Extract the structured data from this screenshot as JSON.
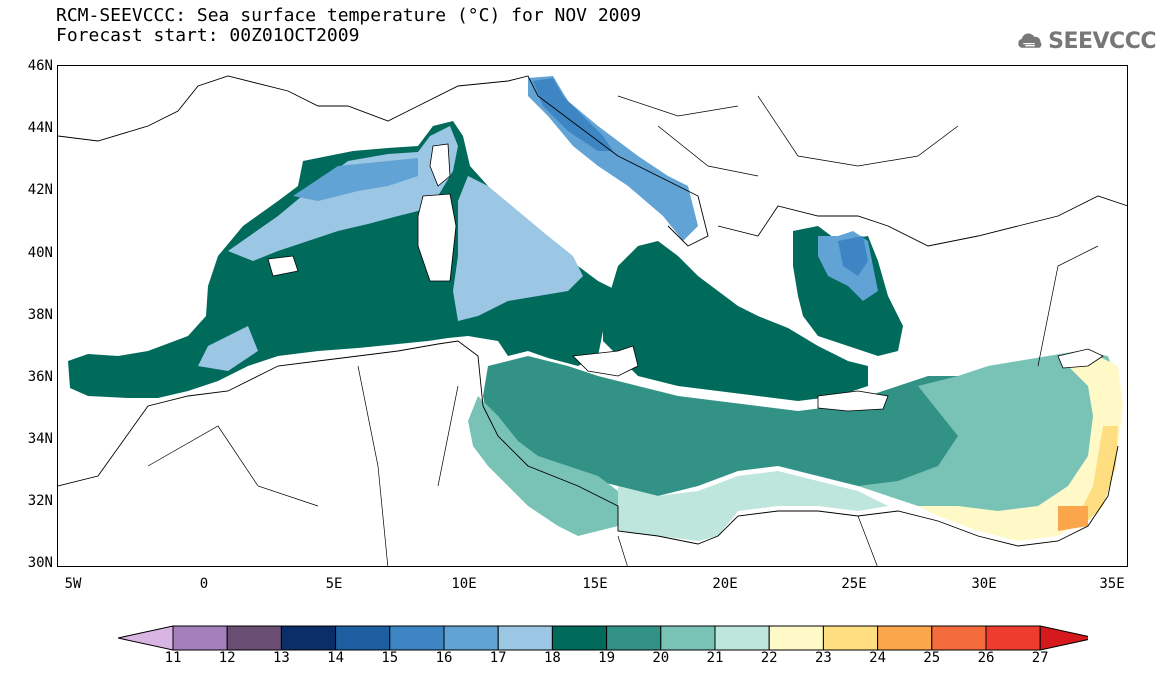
{
  "title": {
    "line1": "RCM-SEEVCCC: Sea surface temperature (°C) for NOV 2009",
    "line2": "Forecast start: 00Z01OCT2009"
  },
  "logo": {
    "text": "SEEVCCC",
    "icon": "cloud-logo-icon",
    "color": "#777777"
  },
  "map": {
    "lat_labels": [
      "46N",
      "44N",
      "42N",
      "40N",
      "38N",
      "36N",
      "34N",
      "32N",
      "30N"
    ],
    "lon_labels": [
      "5W",
      "0",
      "5E",
      "10E",
      "15E",
      "20E",
      "25E",
      "30E",
      "35E"
    ],
    "lon_range": [
      -5.5,
      36
    ],
    "lat_range": [
      30,
      46
    ]
  },
  "colorbar": {
    "ticks": [
      "11",
      "12",
      "13",
      "14",
      "15",
      "16",
      "17",
      "18",
      "19",
      "20",
      "21",
      "22",
      "23",
      "24",
      "25",
      "26",
      "27"
    ],
    "colors": [
      "#d9b5e3",
      "#a57fbc",
      "#6a4d73",
      "#0b2e68",
      "#1d5fa0",
      "#3d85c3",
      "#62a3d6",
      "#9cc7e4",
      "#006a5b",
      "#329286",
      "#78c3b6",
      "#bee6dd",
      "#fff9c8",
      "#fede80",
      "#fca64c",
      "#f46c3b",
      "#ee3d2e",
      "#d5191c"
    ],
    "under_color": "#d9b5e3",
    "over_color": "#d5191c"
  }
}
